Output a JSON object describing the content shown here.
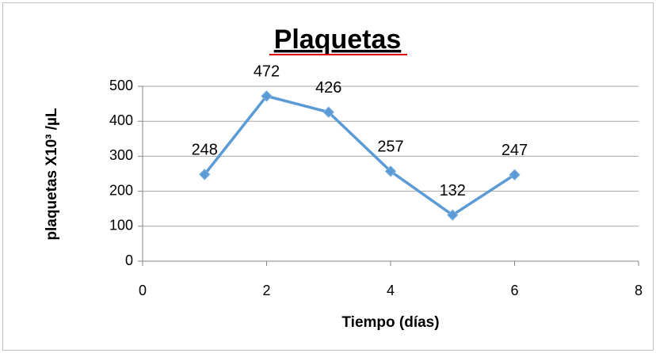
{
  "chart_data": {
    "type": "line",
    "title": "Plaquetas",
    "x_label": "Tiempo (días)",
    "y_label": "plaquetas X10³ /µL",
    "x": [
      1,
      2,
      3,
      4,
      5,
      6
    ],
    "series": [
      {
        "name": "Plaquetas",
        "color": "#5b9bd5",
        "values": [
          248,
          472,
          426,
          257,
          132,
          247
        ]
      }
    ],
    "xlim": [
      0,
      8
    ],
    "xticks": [
      0,
      2,
      4,
      6,
      8
    ],
    "ylim": [
      0,
      500
    ],
    "yticks": [
      0,
      100,
      200,
      300,
      400,
      500
    ],
    "grid": true
  }
}
